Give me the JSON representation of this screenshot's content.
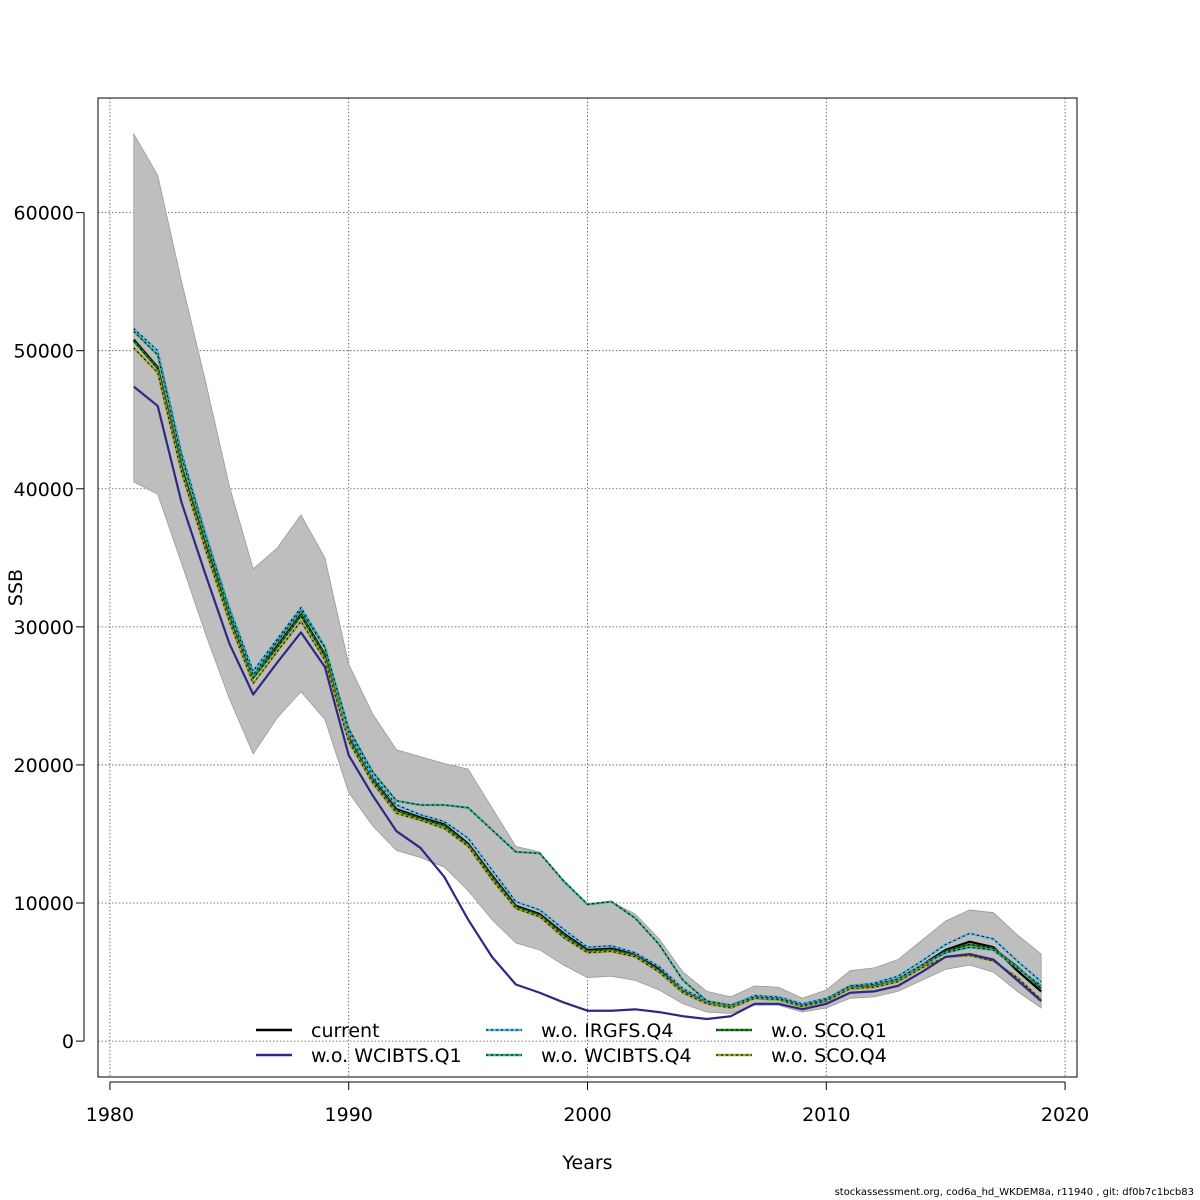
{
  "chart_data": {
    "type": "line",
    "xlabel": "Years",
    "ylabel": "SSB",
    "xlim": [
      1979.5,
      2020.5
    ],
    "ylim": [
      -2600,
      68300
    ],
    "x_ticks": [
      1980,
      1990,
      2000,
      2010,
      2020
    ],
    "y_ticks": [
      0,
      10000,
      20000,
      30000,
      40000,
      50000,
      60000
    ],
    "grid": true,
    "legend_position": "bottom-center",
    "x": [
      1981,
      1982,
      1983,
      1984,
      1985,
      1986,
      1987,
      1988,
      1989,
      1990,
      1991,
      1992,
      1993,
      1994,
      1995,
      1996,
      1997,
      1998,
      1999,
      2000,
      2001,
      2002,
      2003,
      2004,
      2005,
      2006,
      2007,
      2008,
      2009,
      2010,
      2011,
      2012,
      2013,
      2014,
      2015,
      2016,
      2017,
      2018,
      2019
    ],
    "confidence_band": {
      "color": "#bebebe",
      "upper": [
        65700,
        62700,
        55000,
        47800,
        40200,
        34200,
        35700,
        38100,
        35000,
        27300,
        23700,
        21100,
        20600,
        20100,
        19700,
        16900,
        14100,
        13700,
        11500,
        9900,
        10100,
        9200,
        7400,
        5000,
        3600,
        3200,
        4000,
        3900,
        3100,
        3700,
        5100,
        5300,
        5900,
        7300,
        8700,
        9500,
        9300,
        7700,
        6300
      ],
      "lower": [
        40500,
        39600,
        34600,
        29500,
        24800,
        20800,
        23400,
        25300,
        23300,
        18000,
        15600,
        13800,
        13300,
        12600,
        10900,
        8800,
        7100,
        6600,
        5500,
        4600,
        4700,
        4400,
        3700,
        2700,
        2100,
        2000,
        2600,
        2600,
        2100,
        2400,
        3100,
        3200,
        3600,
        4400,
        5200,
        5500,
        5000,
        3600,
        2400
      ]
    },
    "series": [
      {
        "name": "current",
        "color": "#000000",
        "dashed": false,
        "values": [
          50800,
          48800,
          41600,
          36000,
          30800,
          26400,
          28600,
          30900,
          28000,
          22000,
          19000,
          16800,
          16200,
          15700,
          14300,
          12000,
          9800,
          9200,
          7800,
          6600,
          6700,
          6300,
          5200,
          3700,
          2800,
          2500,
          3200,
          3100,
          2600,
          3000,
          3900,
          4000,
          4500,
          5500,
          6600,
          7200,
          6800,
          5100,
          3600
        ]
      },
      {
        "name": "w.o. WCIBTS.Q1",
        "color": "#2e2885",
        "dashed": false,
        "values": [
          47400,
          46000,
          39000,
          33800,
          28800,
          25100,
          27400,
          29600,
          27100,
          20700,
          17800,
          15200,
          14000,
          11900,
          8800,
          6100,
          4100,
          3500,
          2800,
          2200,
          2200,
          2300,
          2100,
          1800,
          1600,
          1800,
          2700,
          2700,
          2300,
          2700,
          3500,
          3600,
          4000,
          5000,
          6100,
          6300,
          5900,
          4400,
          2900
        ]
      },
      {
        "name": "w.o. IRGFS.Q4",
        "color": "#56b4e9",
        "dashed": true,
        "values": [
          51600,
          50000,
          42600,
          36800,
          31400,
          26800,
          29100,
          31400,
          28600,
          22300,
          19200,
          17100,
          16400,
          15900,
          14700,
          12400,
          10100,
          9500,
          8100,
          6800,
          6900,
          6400,
          5400,
          3800,
          2900,
          2600,
          3300,
          3200,
          2700,
          3100,
          4000,
          4200,
          4700,
          5800,
          7000,
          7800,
          7400,
          5800,
          4300
        ]
      },
      {
        "name": "w.o. WCIBTS.Q4",
        "color": "#33a38f",
        "dashed": true,
        "values": [
          51400,
          49700,
          42300,
          36600,
          31200,
          26500,
          28900,
          31200,
          28500,
          22600,
          19500,
          17400,
          17100,
          17100,
          16900,
          15300,
          13700,
          13600,
          11600,
          9900,
          10100,
          8900,
          7000,
          4400,
          2900,
          2600,
          3200,
          3100,
          2600,
          3000,
          4000,
          4100,
          4500,
          5500,
          6400,
          6800,
          6600,
          5300,
          4000
        ]
      },
      {
        "name": "w.o. SCO.Q1",
        "color": "#1f7a1f",
        "dashed": true,
        "values": [
          50700,
          48700,
          41500,
          35900,
          30700,
          26300,
          28500,
          30800,
          27900,
          21900,
          18900,
          16700,
          16100,
          15600,
          14200,
          11900,
          9700,
          9100,
          7700,
          6500,
          6600,
          6200,
          5100,
          3600,
          2700,
          2500,
          3100,
          3000,
          2500,
          2900,
          3800,
          3900,
          4400,
          5400,
          6500,
          7000,
          6700,
          5400,
          3800
        ]
      },
      {
        "name": "w.o. SCO.Q4",
        "color": "#9e9e2e",
        "dashed": true,
        "values": [
          50200,
          48400,
          41200,
          35600,
          30400,
          25900,
          28200,
          30400,
          27600,
          21700,
          18700,
          16500,
          16000,
          15400,
          14100,
          11700,
          9600,
          9000,
          7500,
          6400,
          6500,
          6100,
          5000,
          3500,
          2700,
          2400,
          3100,
          3000,
          2500,
          2900,
          3800,
          3900,
          4300,
          5300,
          6100,
          6200,
          5800,
          4600,
          3000
        ]
      }
    ]
  },
  "footer": "stockassessment.org, cod6a_hd_WKDEM8a, r11940 , git: df0b7c1bcb83"
}
